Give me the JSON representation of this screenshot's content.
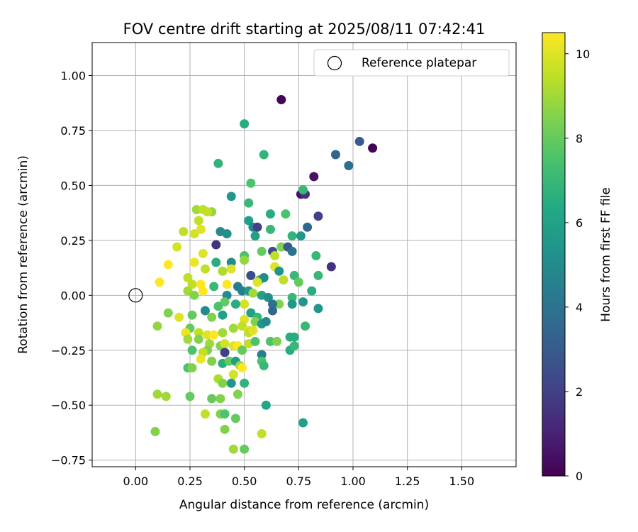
{
  "chart_data": {
    "type": "scatter",
    "title": "FOV centre drift starting at 2025/08/11 07:42:41",
    "xlabel": "Angular distance from reference (arcmin)",
    "ylabel": "Rotation from reference (arcmin)",
    "xlim": [
      -0.2,
      1.75
    ],
    "ylim": [
      -0.78,
      1.15
    ],
    "xticks": [
      0.0,
      0.25,
      0.5,
      0.75,
      1.0,
      1.25,
      1.5
    ],
    "xtick_labels": [
      "0.00",
      "0.25",
      "0.50",
      "0.75",
      "1.00",
      "1.25",
      "1.50"
    ],
    "yticks": [
      -0.75,
      -0.5,
      -0.25,
      0.0,
      0.25,
      0.5,
      0.75,
      1.0
    ],
    "ytick_labels": [
      "−0.75",
      "−0.50",
      "−0.25",
      "0.00",
      "0.25",
      "0.50",
      "0.75",
      "1.00"
    ],
    "grid": true,
    "legend": {
      "position": "top-right",
      "entries": [
        "Reference platepar"
      ]
    },
    "reference_point": {
      "x": 0.0,
      "y": 0.0,
      "label": "Reference platepar"
    },
    "colorbar": {
      "label": "Hours from first FF file",
      "colormap": "viridis",
      "range": [
        0,
        10.5
      ],
      "ticks": [
        0,
        2,
        4,
        6,
        8,
        10
      ],
      "tick_labels": [
        "0",
        "2",
        "4",
        "6",
        "8",
        "10"
      ]
    },
    "points": [
      {
        "x": 0.67,
        "y": 0.89,
        "h": 0.1
      },
      {
        "x": 1.09,
        "y": 0.67,
        "h": 0.1
      },
      {
        "x": 1.03,
        "y": 0.7,
        "h": 3.0
      },
      {
        "x": 0.92,
        "y": 0.64,
        "h": 3.5
      },
      {
        "x": 0.98,
        "y": 0.59,
        "h": 3.8
      },
      {
        "x": 0.82,
        "y": 0.54,
        "h": 0.5
      },
      {
        "x": 0.76,
        "y": 0.46,
        "h": 0.5
      },
      {
        "x": 0.78,
        "y": 0.46,
        "h": 1.5
      },
      {
        "x": 0.84,
        "y": 0.36,
        "h": 2.0
      },
      {
        "x": 0.79,
        "y": 0.31,
        "h": 3.5
      },
      {
        "x": 0.5,
        "y": 0.78,
        "h": 6.5
      },
      {
        "x": 0.59,
        "y": 0.64,
        "h": 6.8
      },
      {
        "x": 0.38,
        "y": 0.6,
        "h": 6.8
      },
      {
        "x": 0.53,
        "y": 0.51,
        "h": 7.5
      },
      {
        "x": 0.44,
        "y": 0.45,
        "h": 5.5
      },
      {
        "x": 0.52,
        "y": 0.42,
        "h": 7.0
      },
      {
        "x": 0.77,
        "y": 0.48,
        "h": 7.0
      },
      {
        "x": 0.69,
        "y": 0.37,
        "h": 7.5
      },
      {
        "x": 0.62,
        "y": 0.37,
        "h": 6.5
      },
      {
        "x": 0.35,
        "y": 0.38,
        "h": 8.8
      },
      {
        "x": 0.28,
        "y": 0.39,
        "h": 9.0
      },
      {
        "x": 0.31,
        "y": 0.39,
        "h": 9.5
      },
      {
        "x": 0.29,
        "y": 0.34,
        "h": 9.5
      },
      {
        "x": 0.33,
        "y": 0.38,
        "h": 9.5
      },
      {
        "x": 0.52,
        "y": 0.34,
        "h": 6.0
      },
      {
        "x": 0.54,
        "y": 0.31,
        "h": 5.0
      },
      {
        "x": 0.56,
        "y": 0.31,
        "h": 2.0
      },
      {
        "x": 0.39,
        "y": 0.29,
        "h": 5.0
      },
      {
        "x": 0.42,
        "y": 0.28,
        "h": 5.2
      },
      {
        "x": 0.62,
        "y": 0.3,
        "h": 7.0
      },
      {
        "x": 0.22,
        "y": 0.29,
        "h": 9.5
      },
      {
        "x": 0.27,
        "y": 0.28,
        "h": 9.8
      },
      {
        "x": 0.3,
        "y": 0.3,
        "h": 10.0
      },
      {
        "x": 0.55,
        "y": 0.27,
        "h": 6.0
      },
      {
        "x": 0.72,
        "y": 0.27,
        "h": 6.8
      },
      {
        "x": 0.76,
        "y": 0.27,
        "h": 5.5
      },
      {
        "x": 0.37,
        "y": 0.23,
        "h": 1.5
      },
      {
        "x": 0.67,
        "y": 0.22,
        "h": 8.5
      },
      {
        "x": 0.7,
        "y": 0.22,
        "h": 3.0
      },
      {
        "x": 0.19,
        "y": 0.22,
        "h": 9.8
      },
      {
        "x": 0.31,
        "y": 0.19,
        "h": 10.0
      },
      {
        "x": 0.58,
        "y": 0.2,
        "h": 8.0
      },
      {
        "x": 0.63,
        "y": 0.2,
        "h": 2.5
      },
      {
        "x": 0.72,
        "y": 0.2,
        "h": 4.0
      },
      {
        "x": 0.83,
        "y": 0.18,
        "h": 7.0
      },
      {
        "x": 0.5,
        "y": 0.18,
        "h": 7.5
      },
      {
        "x": 0.64,
        "y": 0.18,
        "h": 9.5
      },
      {
        "x": 0.5,
        "y": 0.16,
        "h": 8.8
      },
      {
        "x": 0.44,
        "y": 0.15,
        "h": 5.0
      },
      {
        "x": 0.37,
        "y": 0.15,
        "h": 6.5
      },
      {
        "x": 0.27,
        "y": 0.15,
        "h": 10.2
      },
      {
        "x": 0.15,
        "y": 0.14,
        "h": 10.5
      },
      {
        "x": 0.64,
        "y": 0.13,
        "h": 10.0
      },
      {
        "x": 0.66,
        "y": 0.11,
        "h": 5.5
      },
      {
        "x": 0.4,
        "y": 0.11,
        "h": 9.2
      },
      {
        "x": 0.44,
        "y": 0.12,
        "h": 10.0
      },
      {
        "x": 0.32,
        "y": 0.12,
        "h": 9.5
      },
      {
        "x": 0.53,
        "y": 0.09,
        "h": 2.5
      },
      {
        "x": 0.57,
        "y": 0.07,
        "h": 7.0
      },
      {
        "x": 0.59,
        "y": 0.08,
        "h": 5.0
      },
      {
        "x": 0.68,
        "y": 0.07,
        "h": 9.5
      },
      {
        "x": 0.73,
        "y": 0.09,
        "h": 7.0
      },
      {
        "x": 0.9,
        "y": 0.13,
        "h": 1.5
      },
      {
        "x": 0.84,
        "y": 0.09,
        "h": 7.0
      },
      {
        "x": 0.24,
        "y": 0.08,
        "h": 9.5
      },
      {
        "x": 0.11,
        "y": 0.06,
        "h": 10.5
      },
      {
        "x": 0.26,
        "y": 0.05,
        "h": 9.5
      },
      {
        "x": 0.3,
        "y": 0.05,
        "h": 10.5
      },
      {
        "x": 0.36,
        "y": 0.04,
        "h": 7.0
      },
      {
        "x": 0.42,
        "y": 0.05,
        "h": 10.5
      },
      {
        "x": 0.47,
        "y": 0.04,
        "h": 4.5
      },
      {
        "x": 0.56,
        "y": 0.06,
        "h": 10.0
      },
      {
        "x": 0.75,
        "y": 0.06,
        "h": 8.0
      },
      {
        "x": 0.81,
        "y": 0.02,
        "h": 6.5
      },
      {
        "x": 0.24,
        "y": 0.02,
        "h": 9.0
      },
      {
        "x": 0.27,
        "y": 0.0,
        "h": 8.5
      },
      {
        "x": 0.31,
        "y": 0.02,
        "h": 10.5
      },
      {
        "x": 0.42,
        "y": 0.0,
        "h": 5.0
      },
      {
        "x": 0.49,
        "y": 0.02,
        "h": 4.5
      },
      {
        "x": 0.52,
        "y": 0.02,
        "h": 5.5
      },
      {
        "x": 0.54,
        "y": 0.01,
        "h": 9.0
      },
      {
        "x": 0.58,
        "y": 0.0,
        "h": 6.0
      },
      {
        "x": 0.61,
        "y": -0.01,
        "h": 5.2
      },
      {
        "x": 0.72,
        "y": -0.01,
        "h": 7.0
      },
      {
        "x": 0.77,
        "y": -0.03,
        "h": 5.5
      },
      {
        "x": 0.72,
        "y": -0.04,
        "h": 5.5
      },
      {
        "x": 0.66,
        "y": -0.04,
        "h": 8.5
      },
      {
        "x": 0.63,
        "y": -0.04,
        "h": 4.0
      },
      {
        "x": 0.5,
        "y": -0.04,
        "h": 9.8
      },
      {
        "x": 0.46,
        "y": -0.04,
        "h": 6.5
      },
      {
        "x": 0.41,
        "y": -0.03,
        "h": 8.0
      },
      {
        "x": 0.38,
        "y": -0.05,
        "h": 7.5
      },
      {
        "x": 0.32,
        "y": -0.07,
        "h": 5.0
      },
      {
        "x": 0.63,
        "y": -0.07,
        "h": 3.5
      },
      {
        "x": 0.84,
        "y": -0.06,
        "h": 5.5
      },
      {
        "x": 0.15,
        "y": -0.08,
        "h": 8.5
      },
      {
        "x": 0.26,
        "y": -0.09,
        "h": 8.0
      },
      {
        "x": 0.35,
        "y": -0.1,
        "h": 8.5
      },
      {
        "x": 0.4,
        "y": -0.09,
        "h": 6.0
      },
      {
        "x": 0.53,
        "y": -0.08,
        "h": 6.0
      },
      {
        "x": 0.56,
        "y": -0.1,
        "h": 7.0
      },
      {
        "x": 0.2,
        "y": -0.1,
        "h": 10.0
      },
      {
        "x": 0.5,
        "y": -0.11,
        "h": 10.0
      },
      {
        "x": 0.55,
        "y": -0.12,
        "h": 8.5
      },
      {
        "x": 0.58,
        "y": -0.13,
        "h": 5.5
      },
      {
        "x": 0.6,
        "y": -0.12,
        "h": 5.0
      },
      {
        "x": 0.1,
        "y": -0.14,
        "h": 8.8
      },
      {
        "x": 0.25,
        "y": -0.15,
        "h": 8.0
      },
      {
        "x": 0.45,
        "y": -0.15,
        "h": 9.0
      },
      {
        "x": 0.49,
        "y": -0.14,
        "h": 9.5
      },
      {
        "x": 0.52,
        "y": -0.16,
        "h": 10.0
      },
      {
        "x": 0.78,
        "y": -0.14,
        "h": 7.0
      },
      {
        "x": 0.23,
        "y": -0.17,
        "h": 10.2
      },
      {
        "x": 0.29,
        "y": -0.17,
        "h": 9.5
      },
      {
        "x": 0.33,
        "y": -0.18,
        "h": 10.0
      },
      {
        "x": 0.36,
        "y": -0.18,
        "h": 10.5
      },
      {
        "x": 0.4,
        "y": -0.17,
        "h": 9.0
      },
      {
        "x": 0.52,
        "y": -0.17,
        "h": 9.5
      },
      {
        "x": 0.54,
        "y": -0.16,
        "h": 10.0
      },
      {
        "x": 0.24,
        "y": -0.2,
        "h": 9.0
      },
      {
        "x": 0.29,
        "y": -0.2,
        "h": 8.5
      },
      {
        "x": 0.62,
        "y": -0.21,
        "h": 7.5
      },
      {
        "x": 0.65,
        "y": -0.21,
        "h": 8.5
      },
      {
        "x": 0.71,
        "y": -0.19,
        "h": 6.5
      },
      {
        "x": 0.73,
        "y": -0.19,
        "h": 6.5
      },
      {
        "x": 0.34,
        "y": -0.22,
        "h": 9.0
      },
      {
        "x": 0.39,
        "y": -0.23,
        "h": 8.5
      },
      {
        "x": 0.41,
        "y": -0.22,
        "h": 9.8
      },
      {
        "x": 0.45,
        "y": -0.23,
        "h": 10.0
      },
      {
        "x": 0.47,
        "y": -0.23,
        "h": 10.5
      },
      {
        "x": 0.52,
        "y": -0.22,
        "h": 9.5
      },
      {
        "x": 0.55,
        "y": -0.21,
        "h": 7.5
      },
      {
        "x": 0.49,
        "y": -0.25,
        "h": 8.0
      },
      {
        "x": 0.41,
        "y": -0.26,
        "h": 2.0
      },
      {
        "x": 0.33,
        "y": -0.25,
        "h": 8.5
      },
      {
        "x": 0.31,
        "y": -0.26,
        "h": 9.5
      },
      {
        "x": 0.26,
        "y": -0.25,
        "h": 7.5
      },
      {
        "x": 0.71,
        "y": -0.25,
        "h": 6.5
      },
      {
        "x": 0.73,
        "y": -0.23,
        "h": 7.0
      },
      {
        "x": 0.58,
        "y": -0.27,
        "h": 4.5
      },
      {
        "x": 0.3,
        "y": -0.29,
        "h": 10.2
      },
      {
        "x": 0.35,
        "y": -0.3,
        "h": 8.5
      },
      {
        "x": 0.4,
        "y": -0.31,
        "h": 6.5
      },
      {
        "x": 0.43,
        "y": -0.3,
        "h": 8.0
      },
      {
        "x": 0.46,
        "y": -0.3,
        "h": 5.8
      },
      {
        "x": 0.58,
        "y": -0.3,
        "h": 7.5
      },
      {
        "x": 0.59,
        "y": -0.32,
        "h": 7.0
      },
      {
        "x": 0.48,
        "y": -0.32,
        "h": 9.0
      },
      {
        "x": 0.49,
        "y": -0.33,
        "h": 10.5
      },
      {
        "x": 0.24,
        "y": -0.33,
        "h": 7.5
      },
      {
        "x": 0.26,
        "y": -0.33,
        "h": 8.5
      },
      {
        "x": 0.45,
        "y": -0.36,
        "h": 9.8
      },
      {
        "x": 0.38,
        "y": -0.38,
        "h": 9.2
      },
      {
        "x": 0.4,
        "y": -0.4,
        "h": 8.5
      },
      {
        "x": 0.44,
        "y": -0.4,
        "h": 5.5
      },
      {
        "x": 0.5,
        "y": -0.4,
        "h": 6.8
      },
      {
        "x": 0.1,
        "y": -0.45,
        "h": 9.0
      },
      {
        "x": 0.14,
        "y": -0.46,
        "h": 9.0
      },
      {
        "x": 0.25,
        "y": -0.46,
        "h": 8.0
      },
      {
        "x": 0.35,
        "y": -0.47,
        "h": 8.0
      },
      {
        "x": 0.39,
        "y": -0.47,
        "h": 8.5
      },
      {
        "x": 0.47,
        "y": -0.45,
        "h": 8.5
      },
      {
        "x": 0.6,
        "y": -0.5,
        "h": 6.2
      },
      {
        "x": 0.32,
        "y": -0.54,
        "h": 9.5
      },
      {
        "x": 0.39,
        "y": -0.54,
        "h": 8.5
      },
      {
        "x": 0.41,
        "y": -0.54,
        "h": 7.5
      },
      {
        "x": 0.46,
        "y": -0.56,
        "h": 8.0
      },
      {
        "x": 0.77,
        "y": -0.58,
        "h": 6.0
      },
      {
        "x": 0.09,
        "y": -0.62,
        "h": 8.5
      },
      {
        "x": 0.41,
        "y": -0.61,
        "h": 8.5
      },
      {
        "x": 0.58,
        "y": -0.63,
        "h": 9.5
      },
      {
        "x": 0.45,
        "y": -0.7,
        "h": 9.0
      },
      {
        "x": 0.5,
        "y": -0.7,
        "h": 8.0
      }
    ]
  }
}
